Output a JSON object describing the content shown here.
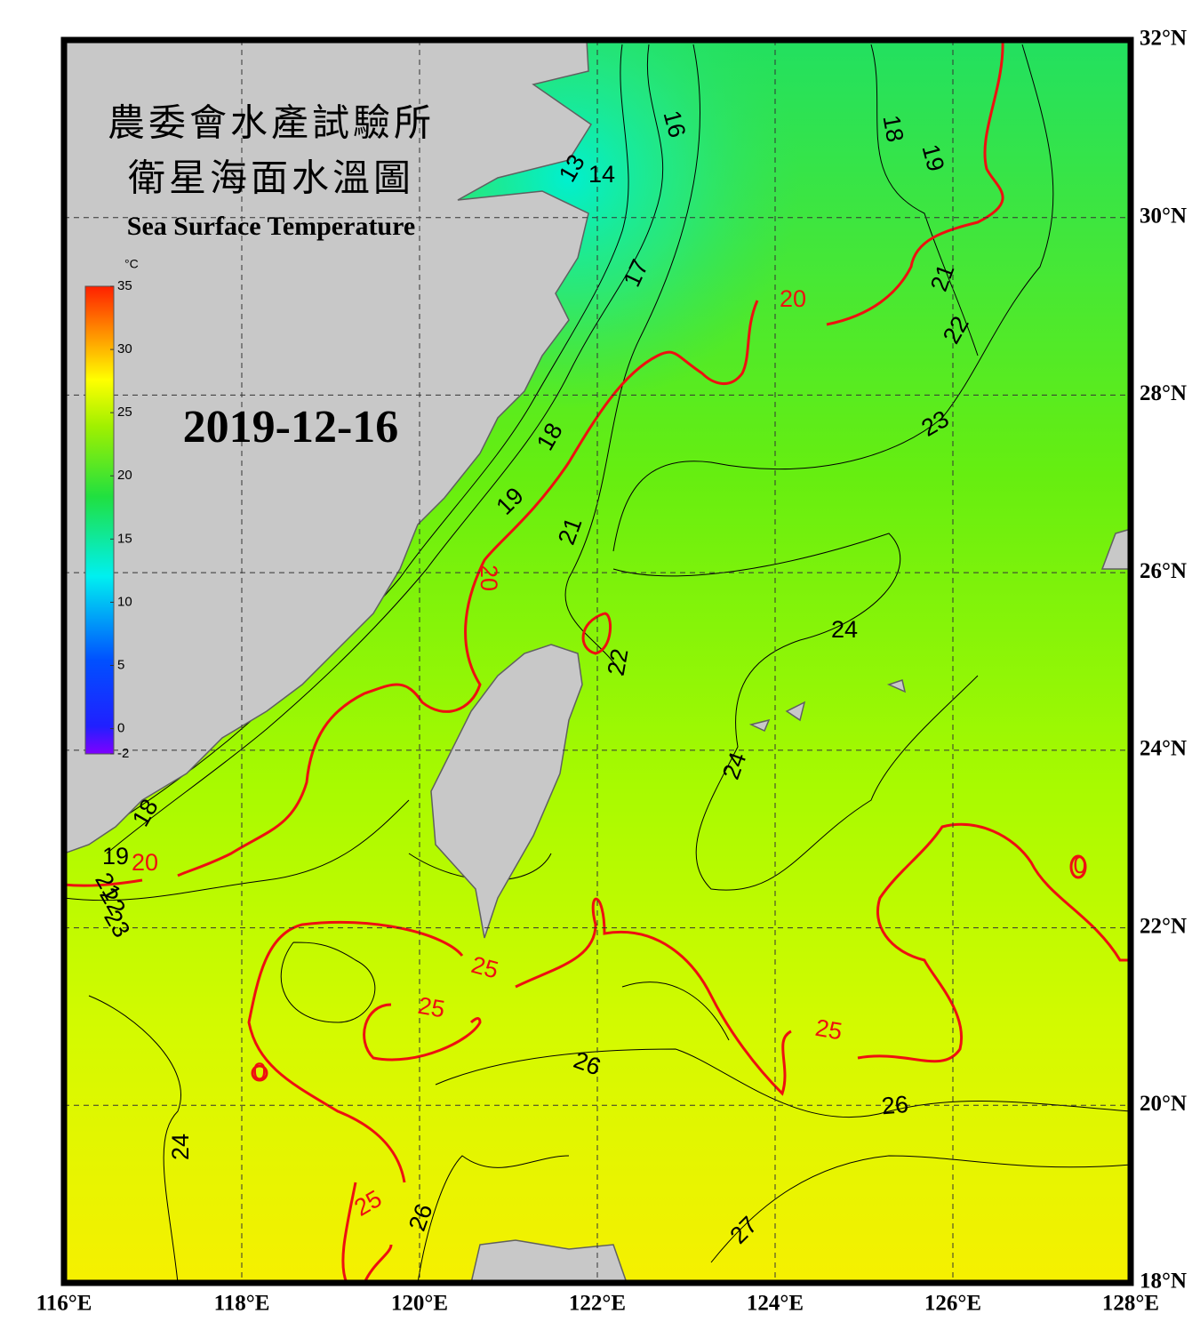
{
  "header": {
    "title_line1": "農委會水產試驗所",
    "title_line2": "衛星海面水溫圖",
    "subtitle": "Sea Surface Temperature",
    "date": "2019-12-16"
  },
  "map": {
    "type": "map",
    "xlim": [
      116,
      128
    ],
    "ylim": [
      18,
      32
    ],
    "xticks": [
      {
        "value": 116,
        "label": "116°E"
      },
      {
        "value": 118,
        "label": "118°E"
      },
      {
        "value": 120,
        "label": "120°E"
      },
      {
        "value": 122,
        "label": "122°E"
      },
      {
        "value": 124,
        "label": "124°E"
      },
      {
        "value": 126,
        "label": "126°E"
      },
      {
        "value": 128,
        "label": "128°E"
      }
    ],
    "yticks": [
      {
        "value": 18,
        "label": "18°N"
      },
      {
        "value": 20,
        "label": "20°N"
      },
      {
        "value": 22,
        "label": "22°N"
      },
      {
        "value": 24,
        "label": "24°N"
      },
      {
        "value": 26,
        "label": "26°N"
      },
      {
        "value": 28,
        "label": "28°N"
      },
      {
        "value": 30,
        "label": "30°N"
      },
      {
        "value": 32,
        "label": "32°N"
      }
    ],
    "grid": true,
    "contour_labels": [
      "16",
      "18",
      "19",
      "13",
      "14",
      "17",
      "20",
      "21",
      "22",
      "23",
      "18",
      "19",
      "21",
      "20",
      "24",
      "22",
      "24",
      "18",
      "19",
      "20",
      "21",
      "22",
      "23",
      "25",
      "25",
      "26",
      "25",
      "26",
      "24",
      "25",
      "26",
      "27",
      "0",
      "0"
    ]
  },
  "colorbar": {
    "unit": "°C",
    "lim": [
      -2,
      35
    ],
    "ticks": [
      35,
      30,
      25,
      20,
      15,
      10,
      5,
      0,
      -2
    ]
  }
}
